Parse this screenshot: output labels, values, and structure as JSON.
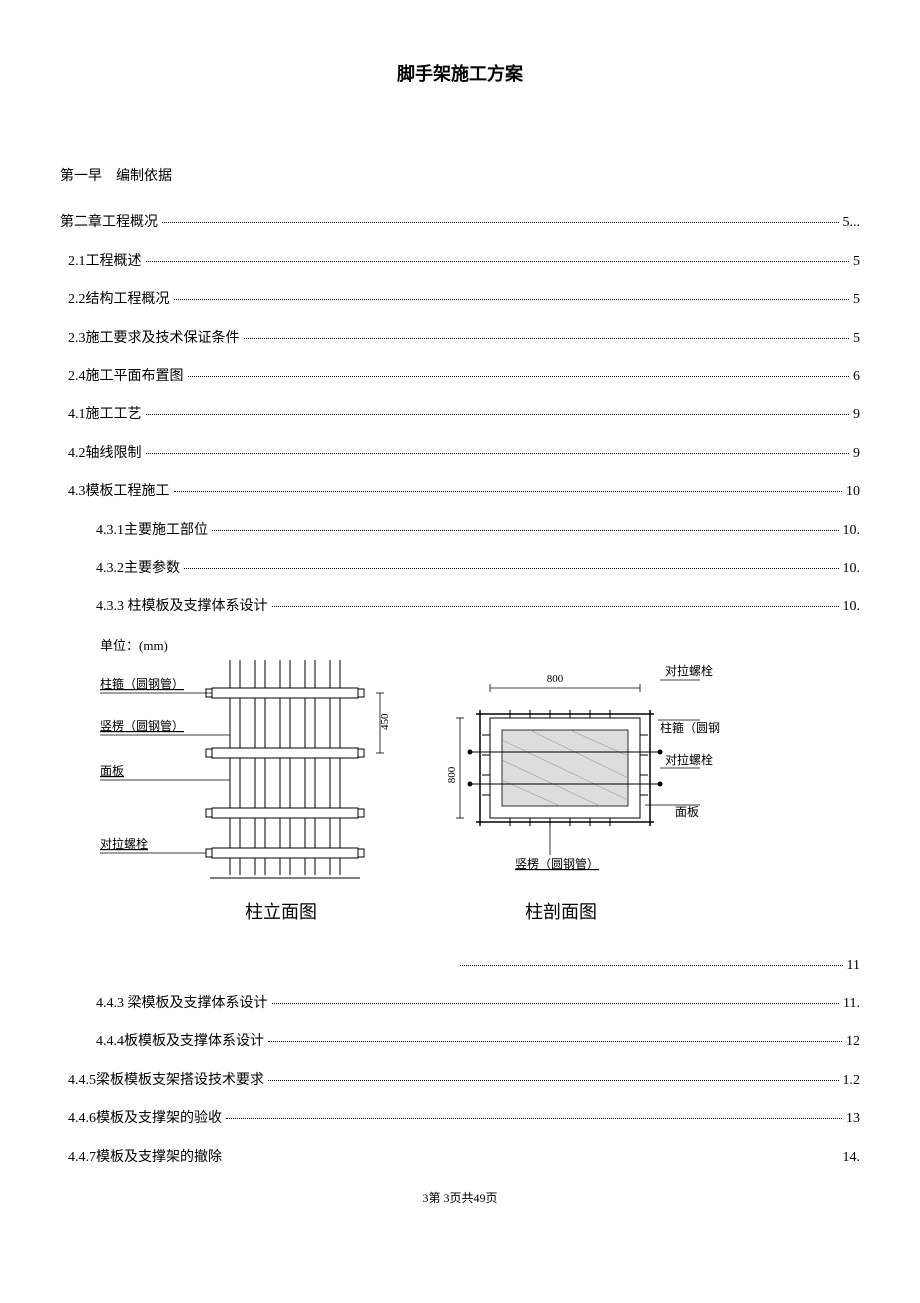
{
  "title": "脚手架施工方案",
  "toc": [
    {
      "label": "第一早　编制依据",
      "page": "",
      "indent": 0,
      "leader": false,
      "mb": "lg"
    },
    {
      "label": "第二章工程概况",
      "page": "5...",
      "indent": 0,
      "leader": true
    },
    {
      "label": "2.1工程概述",
      "page": "5",
      "indent": 1,
      "leader": true
    },
    {
      "label": "2.2结构工程概况",
      "page": "5",
      "indent": 1,
      "leader": true
    },
    {
      "label": "2.3施工要求及技术保证条件",
      "page": "5",
      "indent": 1,
      "leader": true
    },
    {
      "label": "2.4施工平面布置图",
      "page": "6",
      "indent": 1,
      "leader": true
    },
    {
      "label": "4.1施工工艺",
      "page": "9",
      "indent": 1,
      "leader": true
    },
    {
      "label": "4.2轴线限制",
      "page": "9",
      "indent": 1,
      "leader": true
    },
    {
      "label": "4.3模板工程施工",
      "page": "10",
      "indent": 1,
      "leader": true
    },
    {
      "label": "4.3.1主要施工部位",
      "page": "10.",
      "indent": 2,
      "leader": true
    },
    {
      "label": "4.3.2主要参数",
      "page": "10.",
      "indent": 2,
      "leader": true
    },
    {
      "label": "4.3.3 柱模板及支撑体系设计",
      "page": "10.",
      "indent": 2,
      "leader": true
    }
  ],
  "tocAfter": [
    {
      "label": "",
      "page": "11",
      "indent": 2,
      "leader": true,
      "rightOnly": true
    },
    {
      "label": "4.4.3 梁模板及支撑体系设计",
      "page": "11.",
      "indent": 2,
      "leader": true
    },
    {
      "label": "4.4.4板模板及支撑体系设计",
      "page": "12",
      "indent": 2,
      "leader": true
    },
    {
      "label": "4.4.5梁板模板支架搭设技术要求",
      "page": "1.2",
      "indent": 1,
      "leader": true
    },
    {
      "label": "4.4.6模板及支撑架的验收",
      "page": "13",
      "indent": 1,
      "leader": true
    },
    {
      "label": "4.4.7模板及支撑架的撤除",
      "page": "14.",
      "indent": 1,
      "leader": false
    }
  ],
  "diagram": {
    "unitLabel": "单位：(mm)",
    "leftCaption": "柱立面图",
    "rightCaption": "柱剖面图",
    "labels": {
      "zhuGu": "柱箍（圆钢管）",
      "shuLeng": "竖楞（圆钢管）",
      "mianBan": "面板",
      "duiLaLuoShuan": "对拉螺栓"
    },
    "dims": {
      "h1": "450",
      "h2": "800",
      "w": "800"
    },
    "colors": {
      "stroke": "#000000",
      "fill": "#ffffff",
      "hatchGray": "#cccccc",
      "textGray": "#999999"
    }
  },
  "footer": "3第 3页共49页"
}
